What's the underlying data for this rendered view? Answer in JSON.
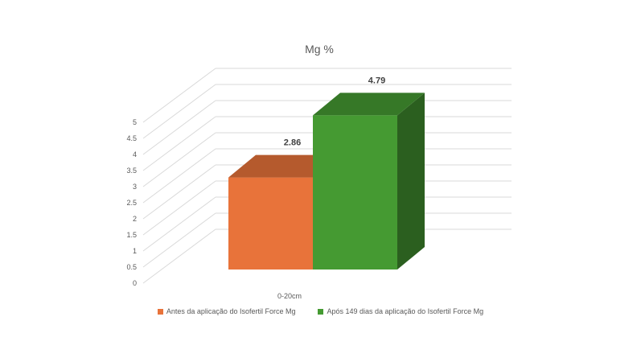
{
  "chart_data": {
    "type": "bar",
    "title": "Mg %",
    "categories": [
      "0-20cm"
    ],
    "series": [
      {
        "name": "Antes da aplicação do Isofertil Force Mg",
        "values": [
          2.86
        ],
        "color": "#E8733A",
        "label": "2.86"
      },
      {
        "name": "Após 149 dias da aplicação do Isofertil Force Mg",
        "values": [
          4.79
        ],
        "color": "#459A32",
        "label": "4.79"
      }
    ],
    "ylim": [
      0,
      5
    ],
    "yticks": [
      "0",
      "0.5",
      "1",
      "1.5",
      "2",
      "2.5",
      "3",
      "3.5",
      "4",
      "4.5",
      "5"
    ],
    "grid": true,
    "legend_position": "bottom",
    "style": "3d-column"
  }
}
